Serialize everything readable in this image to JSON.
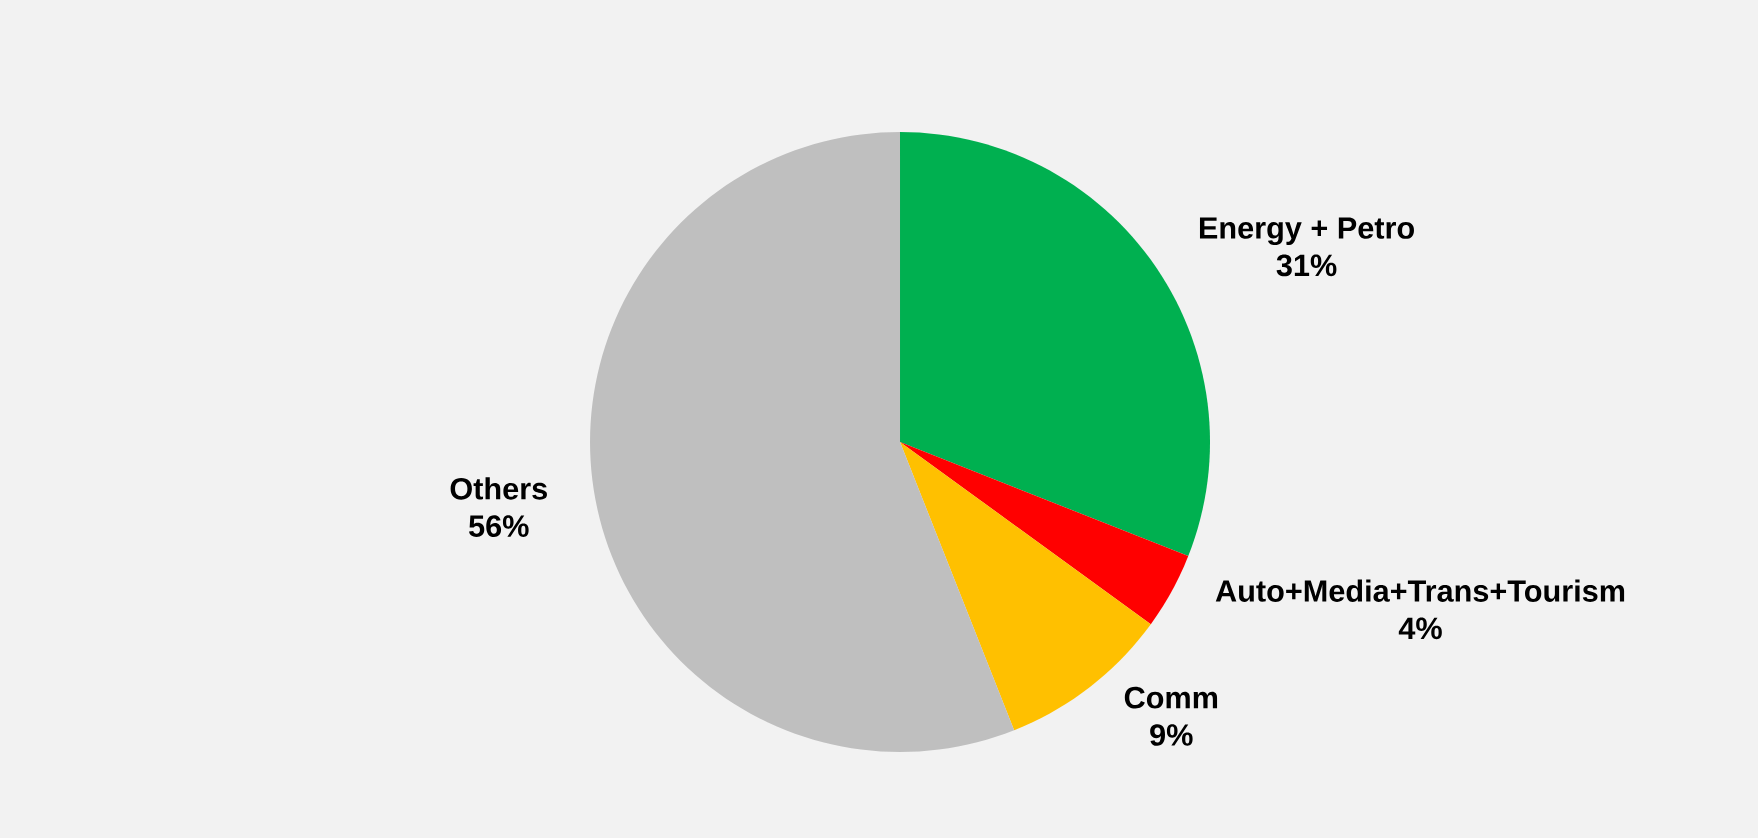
{
  "chart_data": {
    "type": "pie",
    "categories": [
      "Energy + Petro",
      "Auto+Media+Trans+Tourism",
      "Comm",
      "Others"
    ],
    "values": [
      31,
      4,
      9,
      56
    ],
    "colors": [
      "#00b050",
      "#ff0000",
      "#ffc000",
      "#bfbfbf"
    ],
    "value_labels": [
      "31%",
      "4%",
      "9%",
      "56%"
    ]
  }
}
